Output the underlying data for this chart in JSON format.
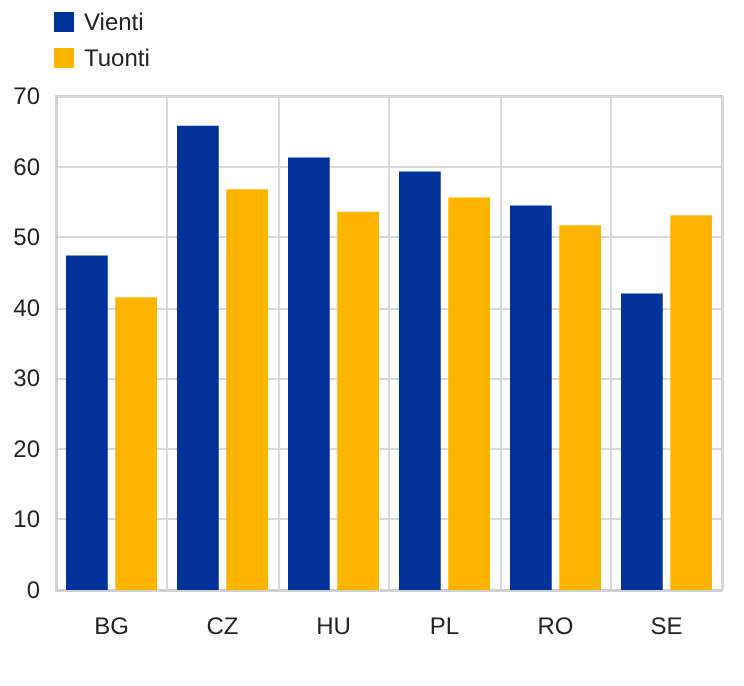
{
  "chart_data": {
    "type": "bar",
    "categories": [
      "BG",
      "CZ",
      "HU",
      "PL",
      "RO",
      "SE"
    ],
    "series": [
      {
        "name": "Vienti",
        "color": "#003299",
        "values": [
          47.4,
          65.8,
          61.3,
          59.3,
          54.5,
          42.0
        ]
      },
      {
        "name": "Tuonti",
        "color": "#ffb400",
        "values": [
          41.5,
          56.8,
          53.6,
          55.6,
          51.7,
          53.1
        ]
      }
    ],
    "ylim": [
      0,
      70
    ],
    "yticks": [
      0,
      10,
      20,
      30,
      40,
      50,
      60,
      70
    ],
    "grid": true,
    "legend": "top left"
  }
}
